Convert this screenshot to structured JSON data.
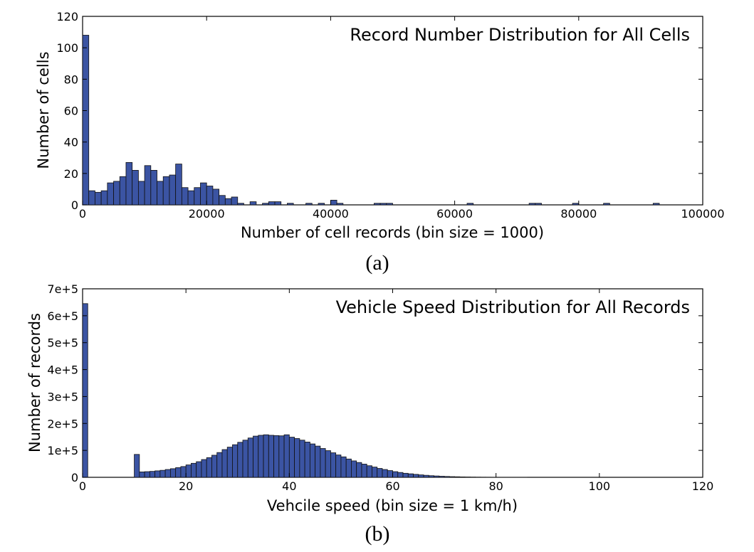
{
  "chart_data": [
    {
      "type": "bar",
      "panel_label": "(a)",
      "title": "Record Number Distribution for All Cells",
      "xlabel": "Number of cell records (bin size = 1000)",
      "ylabel": "Number of cells",
      "xlim": [
        0,
        100000
      ],
      "ylim": [
        0,
        120
      ],
      "xticks": [
        "0",
        "20000",
        "40000",
        "60000",
        "80000",
        "100000"
      ],
      "yticks": [
        "0",
        "20",
        "40",
        "60",
        "80",
        "100",
        "120"
      ],
      "bin_width": 1000,
      "bar_color": "#3b54a3",
      "grid": false,
      "bins": [
        {
          "x": 0,
          "y": 108
        },
        {
          "x": 1000,
          "y": 9
        },
        {
          "x": 2000,
          "y": 8
        },
        {
          "x": 3000,
          "y": 9
        },
        {
          "x": 4000,
          "y": 14
        },
        {
          "x": 5000,
          "y": 15
        },
        {
          "x": 6000,
          "y": 18
        },
        {
          "x": 7000,
          "y": 27
        },
        {
          "x": 8000,
          "y": 22
        },
        {
          "x": 9000,
          "y": 15
        },
        {
          "x": 10000,
          "y": 25
        },
        {
          "x": 11000,
          "y": 22
        },
        {
          "x": 12000,
          "y": 15
        },
        {
          "x": 13000,
          "y": 18
        },
        {
          "x": 14000,
          "y": 19
        },
        {
          "x": 15000,
          "y": 26
        },
        {
          "x": 16000,
          "y": 11
        },
        {
          "x": 17000,
          "y": 9
        },
        {
          "x": 18000,
          "y": 11
        },
        {
          "x": 19000,
          "y": 14
        },
        {
          "x": 20000,
          "y": 12
        },
        {
          "x": 21000,
          "y": 10
        },
        {
          "x": 22000,
          "y": 6
        },
        {
          "x": 23000,
          "y": 4
        },
        {
          "x": 24000,
          "y": 5
        },
        {
          "x": 25000,
          "y": 1
        },
        {
          "x": 27000,
          "y": 2
        },
        {
          "x": 29000,
          "y": 1
        },
        {
          "x": 30000,
          "y": 2
        },
        {
          "x": 31000,
          "y": 2
        },
        {
          "x": 33000,
          "y": 1
        },
        {
          "x": 36000,
          "y": 1
        },
        {
          "x": 38000,
          "y": 1
        },
        {
          "x": 40000,
          "y": 3
        },
        {
          "x": 41000,
          "y": 1
        },
        {
          "x": 47000,
          "y": 1
        },
        {
          "x": 48000,
          "y": 1
        },
        {
          "x": 49000,
          "y": 1
        },
        {
          "x": 62000,
          "y": 1
        },
        {
          "x": 72000,
          "y": 1
        },
        {
          "x": 73000,
          "y": 1
        },
        {
          "x": 79000,
          "y": 1
        },
        {
          "x": 84000,
          "y": 1
        },
        {
          "x": 92000,
          "y": 1
        }
      ]
    },
    {
      "type": "bar",
      "panel_label": "(b)",
      "title": "Vehicle Speed Distribution for All Records",
      "xlabel": "Vehcile speed (bin size = 1 km/h)",
      "ylabel": "Number of records",
      "xlim": [
        0,
        120
      ],
      "ylim": [
        0,
        700000
      ],
      "xticks": [
        "0",
        "20",
        "40",
        "60",
        "80",
        "100",
        "120"
      ],
      "yticks": [
        "0",
        "1e+5",
        "2e+5",
        "3e+5",
        "4e+5",
        "5e+5",
        "6e+5",
        "7e+5"
      ],
      "bin_width": 1,
      "bar_color": "#3b54a3",
      "grid": false,
      "bins": [
        {
          "x": 0,
          "y": 645000
        },
        {
          "x": 10,
          "y": 85000
        },
        {
          "x": 11,
          "y": 20000
        },
        {
          "x": 12,
          "y": 21000
        },
        {
          "x": 13,
          "y": 22000
        },
        {
          "x": 14,
          "y": 24000
        },
        {
          "x": 15,
          "y": 26000
        },
        {
          "x": 16,
          "y": 29000
        },
        {
          "x": 17,
          "y": 32000
        },
        {
          "x": 18,
          "y": 36000
        },
        {
          "x": 19,
          "y": 40000
        },
        {
          "x": 20,
          "y": 46000
        },
        {
          "x": 21,
          "y": 52000
        },
        {
          "x": 22,
          "y": 58000
        },
        {
          "x": 23,
          "y": 66000
        },
        {
          "x": 24,
          "y": 73000
        },
        {
          "x": 25,
          "y": 82000
        },
        {
          "x": 26,
          "y": 92000
        },
        {
          "x": 27,
          "y": 103000
        },
        {
          "x": 28,
          "y": 112000
        },
        {
          "x": 29,
          "y": 121000
        },
        {
          "x": 30,
          "y": 130000
        },
        {
          "x": 31,
          "y": 138000
        },
        {
          "x": 32,
          "y": 146000
        },
        {
          "x": 33,
          "y": 153000
        },
        {
          "x": 34,
          "y": 156000
        },
        {
          "x": 35,
          "y": 158000
        },
        {
          "x": 36,
          "y": 156000
        },
        {
          "x": 37,
          "y": 155000
        },
        {
          "x": 38,
          "y": 154000
        },
        {
          "x": 39,
          "y": 158000
        },
        {
          "x": 40,
          "y": 149000
        },
        {
          "x": 41,
          "y": 144000
        },
        {
          "x": 42,
          "y": 138000
        },
        {
          "x": 43,
          "y": 131000
        },
        {
          "x": 44,
          "y": 124000
        },
        {
          "x": 45,
          "y": 116000
        },
        {
          "x": 46,
          "y": 107000
        },
        {
          "x": 47,
          "y": 99000
        },
        {
          "x": 48,
          "y": 91000
        },
        {
          "x": 49,
          "y": 83000
        },
        {
          "x": 50,
          "y": 76000
        },
        {
          "x": 51,
          "y": 68000
        },
        {
          "x": 52,
          "y": 61000
        },
        {
          "x": 53,
          "y": 55000
        },
        {
          "x": 54,
          "y": 49000
        },
        {
          "x": 55,
          "y": 43000
        },
        {
          "x": 56,
          "y": 38000
        },
        {
          "x": 57,
          "y": 33000
        },
        {
          "x": 58,
          "y": 29000
        },
        {
          "x": 59,
          "y": 25000
        },
        {
          "x": 60,
          "y": 21000
        },
        {
          "x": 61,
          "y": 18000
        },
        {
          "x": 62,
          "y": 15000
        },
        {
          "x": 63,
          "y": 13000
        },
        {
          "x": 64,
          "y": 11000
        },
        {
          "x": 65,
          "y": 9000
        },
        {
          "x": 66,
          "y": 7500
        },
        {
          "x": 67,
          "y": 6000
        },
        {
          "x": 68,
          "y": 5000
        },
        {
          "x": 69,
          "y": 4000
        },
        {
          "x": 70,
          "y": 3200
        },
        {
          "x": 71,
          "y": 2500
        },
        {
          "x": 72,
          "y": 2000
        },
        {
          "x": 73,
          "y": 1500
        },
        {
          "x": 74,
          "y": 1200
        },
        {
          "x": 75,
          "y": 900
        },
        {
          "x": 76,
          "y": 700
        },
        {
          "x": 77,
          "y": 500
        },
        {
          "x": 78,
          "y": 400
        },
        {
          "x": 79,
          "y": 300
        },
        {
          "x": 80,
          "y": 200
        },
        {
          "x": 81,
          "y": 150
        },
        {
          "x": 82,
          "y": 100
        },
        {
          "x": 83,
          "y": 80
        },
        {
          "x": 84,
          "y": 60
        },
        {
          "x": 85,
          "y": 40
        }
      ]
    }
  ]
}
